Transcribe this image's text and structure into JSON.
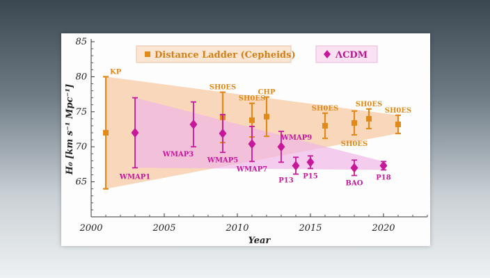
{
  "chart_data": {
    "type": "scatter",
    "title": "",
    "xlabel": "Year",
    "ylabel": "H₀  [km s⁻¹ Mpc⁻¹]",
    "xlim": [
      2000,
      2023
    ],
    "ylim": [
      60,
      85
    ],
    "xticks": [
      2000,
      2005,
      2010,
      2015,
      2020
    ],
    "yticks": [
      65,
      70,
      75,
      80,
      85
    ],
    "legend_position": "top",
    "colors": {
      "ladder": "#e08a1a",
      "lcdm": "#c8189a",
      "ladder_band": "#f7c9a4",
      "lcdm_band": "#f0b6e6"
    },
    "series": [
      {
        "name": "Distance Ladder (Cepheids)",
        "marker": "square",
        "points": [
          {
            "label": "KP",
            "x": 2001,
            "y": 72.0,
            "err": 8.0
          },
          {
            "label": "SH0ES",
            "x": 2009,
            "y": 74.2,
            "err": 3.6
          },
          {
            "label": "SH0ES",
            "x": 2011,
            "y": 73.8,
            "err": 2.4
          },
          {
            "label": "CHP",
            "x": 2012,
            "y": 74.3,
            "err": 2.8
          },
          {
            "label": "SH0ES",
            "x": 2016,
            "y": 73.0,
            "err": 1.8
          },
          {
            "label": "SH0ES",
            "x": 2018,
            "y": 73.4,
            "err": 1.7
          },
          {
            "label": "SH0ES",
            "x": 2019,
            "y": 74.0,
            "err": 1.4
          },
          {
            "label": "SH0ES",
            "x": 2021,
            "y": 73.2,
            "err": 1.3
          }
        ]
      },
      {
        "name": "ΛCDM",
        "marker": "diamond",
        "points": [
          {
            "label": "WMAP1",
            "x": 2003,
            "y": 72.0,
            "err": 5.0
          },
          {
            "label": "WMAP3",
            "x": 2007,
            "y": 73.2,
            "err": 3.2
          },
          {
            "label": "WMAP5",
            "x": 2009,
            "y": 71.9,
            "err": 2.7
          },
          {
            "label": "WMAP7",
            "x": 2011,
            "y": 70.4,
            "err": 2.5
          },
          {
            "label": "WMAP9",
            "x": 2013,
            "y": 70.0,
            "err": 2.2
          },
          {
            "label": "P13",
            "x": 2014,
            "y": 67.3,
            "err": 1.2
          },
          {
            "label": "P15",
            "x": 2015,
            "y": 67.8,
            "err": 0.9
          },
          {
            "label": "BAO",
            "x": 2018,
            "y": 67.0,
            "err": 1.1
          },
          {
            "label": "P18",
            "x": 2020,
            "y": 67.3,
            "err": 0.6
          }
        ]
      }
    ],
    "bands": [
      {
        "series": "Distance Ladder (Cepheids)",
        "upper": [
          [
            2001,
            80
          ],
          [
            2021,
            74.5
          ]
        ],
        "lower": [
          [
            2001,
            64
          ],
          [
            2021,
            71.9
          ]
        ]
      },
      {
        "series": "ΛCDM",
        "upper": [
          [
            2003,
            77
          ],
          [
            2020,
            67.9
          ]
        ],
        "lower": [
          [
            2003,
            67
          ],
          [
            2020,
            66.7
          ]
        ]
      }
    ]
  }
}
